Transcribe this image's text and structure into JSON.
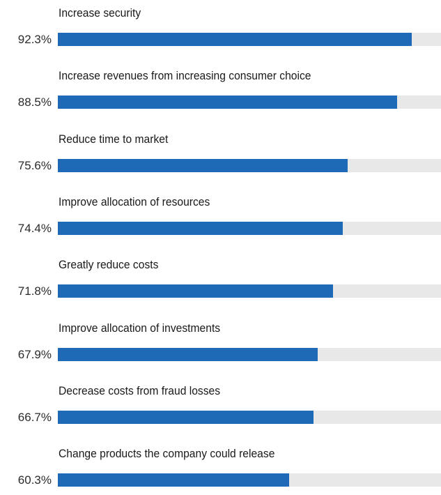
{
  "chart_data": {
    "type": "bar",
    "orientation": "horizontal",
    "unit": "%",
    "xlim": [
      0,
      100
    ],
    "grid": false,
    "legend": "none",
    "colors": {
      "bar": "#1f6ab7",
      "track": "#e8e8e8",
      "text": "#1a1a1a"
    },
    "categories": [
      "Increase security",
      "Increase revenues from increasing consumer choice",
      "Reduce time to market",
      "Improve allocation of resources",
      "Greatly reduce costs",
      "Improve allocation of investments",
      "Decrease costs from fraud losses",
      "Change products the company could release"
    ],
    "values": [
      92.3,
      88.5,
      75.6,
      74.4,
      71.8,
      67.9,
      66.7,
      60.3
    ],
    "value_labels": [
      "92.3%",
      "88.5%",
      "75.6%",
      "74.4%",
      "71.8%",
      "67.9%",
      "66.7%",
      "60.3%"
    ]
  }
}
